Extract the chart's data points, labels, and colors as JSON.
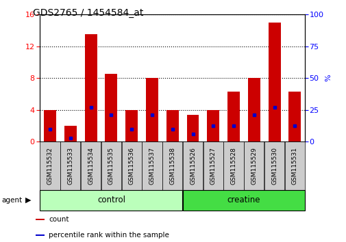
{
  "title": "GDS2765 / 1454584_at",
  "samples": [
    "GSM115532",
    "GSM115533",
    "GSM115534",
    "GSM115535",
    "GSM115536",
    "GSM115537",
    "GSM115538",
    "GSM115526",
    "GSM115527",
    "GSM115528",
    "GSM115529",
    "GSM115530",
    "GSM115531"
  ],
  "count_values": [
    4.0,
    2.0,
    13.5,
    8.5,
    4.0,
    8.0,
    4.0,
    3.4,
    4.0,
    6.3,
    8.0,
    15.0,
    6.3
  ],
  "percentile_values": [
    10.0,
    3.0,
    27.0,
    21.0,
    10.0,
    21.0,
    10.0,
    6.0,
    12.5,
    12.5,
    21.0,
    27.0,
    12.5
  ],
  "bar_color": "#cc0000",
  "pct_color": "#0000cc",
  "ylim_left": [
    0,
    16
  ],
  "ylim_right": [
    0,
    100
  ],
  "yticks_left": [
    0,
    4,
    8,
    12,
    16
  ],
  "yticks_right": [
    0,
    25,
    50,
    75,
    100
  ],
  "groups": [
    {
      "label": "control",
      "start": 0,
      "end": 7,
      "color": "#bbffbb"
    },
    {
      "label": "creatine",
      "start": 7,
      "end": 13,
      "color": "#44dd44"
    }
  ],
  "agent_label": "agent",
  "legend_items": [
    {
      "label": "count",
      "color": "#cc0000"
    },
    {
      "label": "percentile rank within the sample",
      "color": "#0000cc"
    }
  ],
  "background_color": "#ffffff",
  "plot_bg": "#ffffff",
  "tick_label_bg": "#cccccc",
  "title_fontsize": 10,
  "tick_fontsize": 6.5,
  "bar_width": 0.6
}
